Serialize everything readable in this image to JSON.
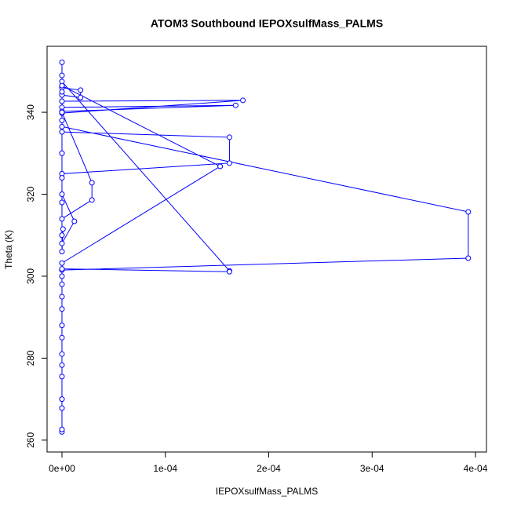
{
  "chart_data": {
    "type": "line",
    "title": "ATOM3 Southbound IEPOXsulfMass_PALMS",
    "x_label": "IEPOXsulfMass_PALMS",
    "y_label": "Theta (K)",
    "xlim": [
      -1.44e-05,
      0.0004106
    ],
    "ylim": [
      257.1,
      356.1
    ],
    "xticks": [
      {
        "value": 0,
        "label": "0e+00"
      },
      {
        "value": 0.0001,
        "label": "1e-04"
      },
      {
        "value": 0.0002,
        "label": "2e-04"
      },
      {
        "value": 0.0003,
        "label": "3e-04"
      },
      {
        "value": 0.0004,
        "label": "4e-04"
      }
    ],
    "yticks": [
      260,
      280,
      300,
      320,
      340
    ],
    "series": [
      {
        "name": "IEPOXsulfMass_PALMS",
        "color": "#0000ff",
        "x": [
          0,
          0,
          0,
          0,
          0,
          0,
          0,
          0,
          0,
          0,
          0,
          0,
          0,
          0,
          0.000393,
          0.000393,
          0,
          0,
          0.000162,
          0.000162,
          0,
          0,
          0,
          0.000175,
          0,
          0,
          0.000168,
          0,
          0,
          1.8e-05,
          1.8e-05,
          0,
          0,
          0.000162,
          0.000162,
          0,
          0,
          0.000153,
          0,
          0,
          2.9e-05,
          2.9e-05,
          0,
          0,
          1.2e-05,
          0,
          1e-06,
          0,
          0,
          0,
          0,
          0,
          0,
          0,
          0,
          0
        ],
        "values": [
          262,
          262.6,
          267.8,
          270,
          275.5,
          278.3,
          281,
          285,
          288,
          292,
          295,
          298,
          300,
          301.5,
          304.4,
          315.7,
          336.5,
          335.2,
          333.9,
          327.6,
          325,
          330,
          339.8,
          342.9,
          342.7,
          341.2,
          341.7,
          340.2,
          346,
          345.4,
          343.6,
          344.2,
          347.5,
          301.3,
          301.1,
          301.8,
          303.2,
          326.8,
          346.5,
          340,
          322.8,
          318.6,
          314,
          320,
          313.4,
          308,
          311.5,
          306,
          310,
          318,
          324,
          330,
          338,
          345,
          349,
          352.2
        ]
      }
    ]
  }
}
